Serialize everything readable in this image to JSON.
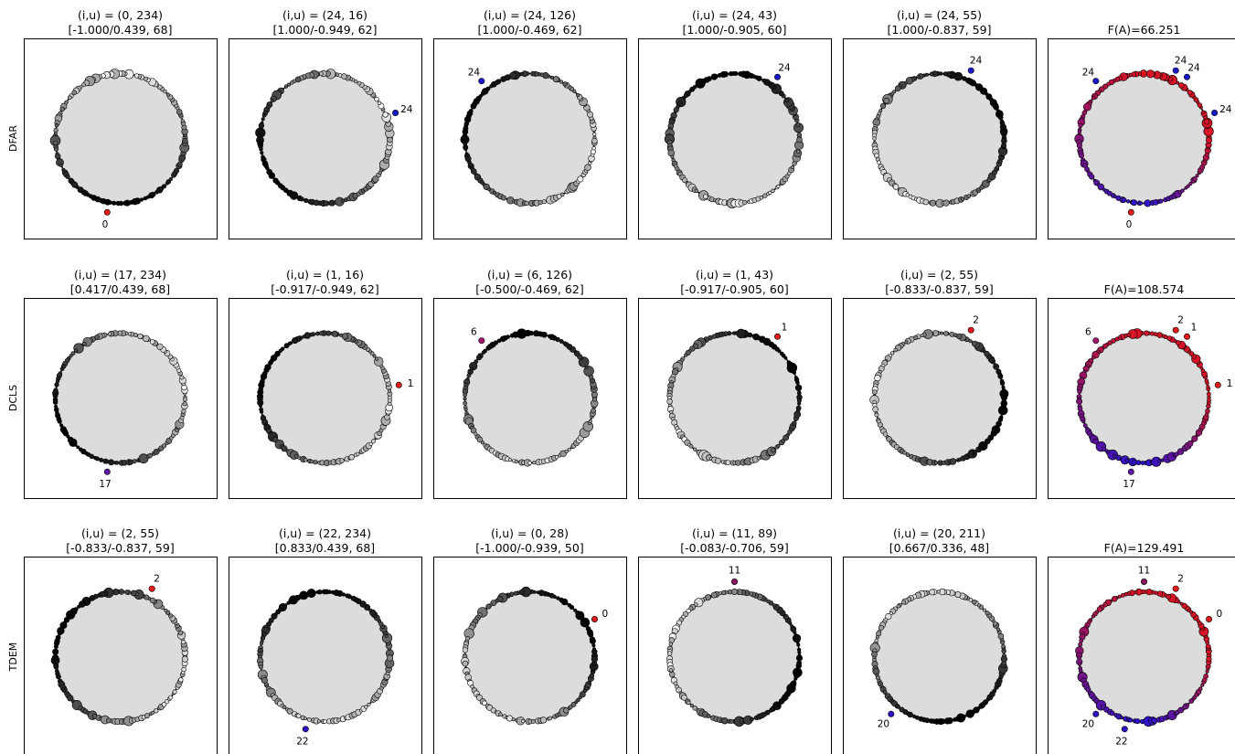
{
  "figure": {
    "rows": [
      {
        "label": "DFAR",
        "panels": [
          {
            "title_line1": "(i,u) = (0, 234)",
            "title_line2": "[-1.000/0.439, 68]",
            "markers": [
              {
                "label": "0",
                "color": "#e01b1b",
                "angle_deg": -100
              }
            ]
          },
          {
            "title_line1": "(i,u) = (24, 16)",
            "title_line2": "[1.000/-0.949, 62]",
            "markers": [
              {
                "label": "24",
                "color": "#1818c8",
                "angle_deg": 20
              }
            ]
          },
          {
            "title_line1": "(i,u) = (24, 126)",
            "title_line2": "[1.000/-0.469, 62]",
            "markers": [
              {
                "label": "24",
                "color": "#1818c8",
                "angle_deg": 130
              }
            ]
          },
          {
            "title_line1": "(i,u) = (24, 43)",
            "title_line2": "[1.000/-0.905, 60]",
            "markers": [
              {
                "label": "24",
                "color": "#1818c8",
                "angle_deg": 55
              }
            ]
          },
          {
            "title_line1": "(i,u) = (24, 55)",
            "title_line2": "[1.000/-0.837, 59]",
            "markers": [
              {
                "label": "24",
                "color": "#1818c8",
                "angle_deg": 65
              }
            ]
          },
          {
            "title_line1": "",
            "title_line2": "F(A)=66.251",
            "markers": [
              {
                "label": "24",
                "color": "#1818c8",
                "angle_deg": 130
              },
              {
                "label": "24",
                "color": "#1818c8",
                "angle_deg": 65
              },
              {
                "label": "24",
                "color": "#1818c8",
                "angle_deg": 55
              },
              {
                "label": "24",
                "color": "#1818c8",
                "angle_deg": 20
              },
              {
                "label": "0",
                "color": "#e01b1b",
                "angle_deg": -100
              }
            ]
          }
        ]
      },
      {
        "label": "DCLS",
        "panels": [
          {
            "title_line1": "(i,u) = (17, 234)",
            "title_line2": "[0.417/0.439, 68]",
            "markers": [
              {
                "label": "17",
                "color": "#5a1e9e",
                "angle_deg": -100
              }
            ]
          },
          {
            "title_line1": "(i,u) = (1, 16)",
            "title_line2": "[-0.917/-0.949, 62]",
            "markers": [
              {
                "label": "1",
                "color": "#e01b1b",
                "angle_deg": 10
              }
            ]
          },
          {
            "title_line1": "(i,u) = (6, 126)",
            "title_line2": "[-0.500/-0.469, 62]",
            "markers": [
              {
                "label": "6",
                "color": "#a0156a",
                "angle_deg": 130
              }
            ]
          },
          {
            "title_line1": "(i,u) = (1, 43)",
            "title_line2": "[-0.917/-0.905, 60]",
            "markers": [
              {
                "label": "1",
                "color": "#e01b1b",
                "angle_deg": 55
              }
            ]
          },
          {
            "title_line1": "(i,u) = (2, 55)",
            "title_line2": "[-0.833/-0.837, 59]",
            "markers": [
              {
                "label": "2",
                "color": "#e01b1b",
                "angle_deg": 65
              }
            ]
          },
          {
            "title_line1": "",
            "title_line2": "F(A)=108.574",
            "markers": [
              {
                "label": "6",
                "color": "#a0156a",
                "angle_deg": 130
              },
              {
                "label": "2",
                "color": "#e01b1b",
                "angle_deg": 65
              },
              {
                "label": "1",
                "color": "#e01b1b",
                "angle_deg": 55
              },
              {
                "label": "1",
                "color": "#e01b1b",
                "angle_deg": 10
              },
              {
                "label": "17",
                "color": "#5a1e9e",
                "angle_deg": -100
              }
            ]
          }
        ]
      },
      {
        "label": "TDEM",
        "panels": [
          {
            "title_line1": "(i,u) = (2, 55)",
            "title_line2": "[-0.833/-0.837, 59]",
            "markers": [
              {
                "label": "2",
                "color": "#e01b1b",
                "angle_deg": 65
              }
            ]
          },
          {
            "title_line1": "(i,u) = (22, 234)",
            "title_line2": "[0.833/0.439, 68]",
            "markers": [
              {
                "label": "22",
                "color": "#2a14c0",
                "angle_deg": -105
              }
            ]
          },
          {
            "title_line1": "(i,u) = (0, 28)",
            "title_line2": "[-1.000/-0.939, 50]",
            "markers": [
              {
                "label": "0",
                "color": "#e01b1b",
                "angle_deg": 30
              }
            ]
          },
          {
            "title_line1": "(i,u) = (11, 89)",
            "title_line2": "[-0.083/-0.706, 59]",
            "markers": [
              {
                "label": "11",
                "color": "#8a1060",
                "angle_deg": 90
              }
            ]
          },
          {
            "title_line1": "(i,u) = (20, 211)",
            "title_line2": "[0.667/0.336, 48]",
            "markers": [
              {
                "label": "20",
                "color": "#2a14c0",
                "angle_deg": -130
              }
            ]
          },
          {
            "title_line1": "",
            "title_line2": "F(A)=129.491",
            "markers": [
              {
                "label": "11",
                "color": "#8a1060",
                "angle_deg": 90
              },
              {
                "label": "2",
                "color": "#e01b1b",
                "angle_deg": 65
              },
              {
                "label": "0",
                "color": "#e01b1b",
                "angle_deg": 30
              },
              {
                "label": "20",
                "color": "#2a14c0",
                "angle_deg": -130
              },
              {
                "label": "22",
                "color": "#2a14c0",
                "angle_deg": -105
              }
            ]
          }
        ]
      }
    ]
  }
}
